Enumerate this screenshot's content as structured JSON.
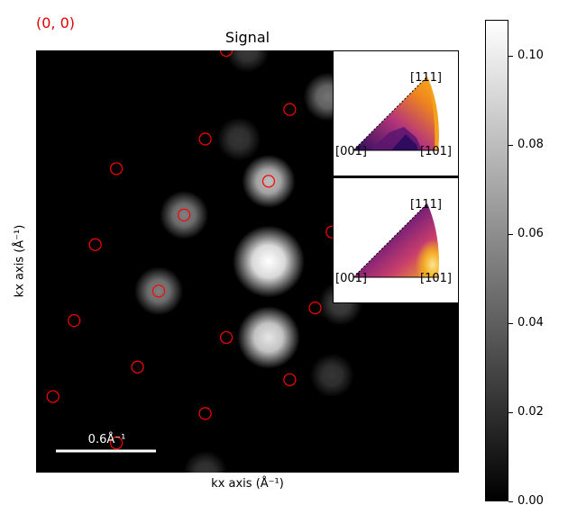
{
  "header": {
    "coordinate": "(0, 0)"
  },
  "chart_data": {
    "type": "heatmap",
    "title": "Signal",
    "xlabel": "kx axis (Å⁻¹)",
    "ylabel": "kx axis (Å⁻¹)",
    "scalebar_label": "0.6Å⁻¹",
    "colormap": "gray",
    "colorbar": {
      "range": [
        0.0,
        0.108
      ],
      "ticks": [
        "0.00",
        "0.02",
        "0.04",
        "0.06",
        "0.08",
        "0.10"
      ],
      "tick_values": [
        0.0,
        0.02,
        0.04,
        0.06,
        0.08,
        0.1
      ]
    },
    "diffraction_spots": [
      {
        "col": 0.55,
        "row": 0.5,
        "intensity": 1.0,
        "size": 1.0
      },
      {
        "col": 0.55,
        "row": 0.68,
        "intensity": 0.75,
        "size": 0.8
      },
      {
        "col": 0.55,
        "row": 0.31,
        "intensity": 0.6,
        "size": 0.6
      },
      {
        "col": 0.69,
        "row": 0.11,
        "intensity": 0.3,
        "size": 0.5
      },
      {
        "col": 0.35,
        "row": 0.39,
        "intensity": 0.35,
        "size": 0.5
      },
      {
        "col": 0.29,
        "row": 0.57,
        "intensity": 0.35,
        "size": 0.5
      },
      {
        "col": 0.5,
        "row": 0.0,
        "intensity": 0.08,
        "size": 0.4
      },
      {
        "col": 0.48,
        "row": 0.21,
        "intensity": 0.06,
        "size": 0.4
      },
      {
        "col": 0.7,
        "row": 0.77,
        "intensity": 0.06,
        "size": 0.4
      },
      {
        "col": 0.72,
        "row": 0.6,
        "intensity": 0.1,
        "size": 0.4
      },
      {
        "col": 0.76,
        "row": 0.43,
        "intensity": 0.1,
        "size": 0.4
      },
      {
        "col": 0.4,
        "row": 1.0,
        "intensity": 0.06,
        "size": 0.4
      }
    ],
    "markers": {
      "color": "#ff0000",
      "points": [
        {
          "col": 0.45,
          "row": 0.0
        },
        {
          "col": 0.6,
          "row": 0.14
        },
        {
          "col": 0.4,
          "row": 0.21
        },
        {
          "col": 0.19,
          "row": 0.28
        },
        {
          "col": 0.55,
          "row": 0.31
        },
        {
          "col": 0.35,
          "row": 0.39
        },
        {
          "col": 0.14,
          "row": 0.46
        },
        {
          "col": 0.7,
          "row": 0.43
        },
        {
          "col": 0.29,
          "row": 0.57
        },
        {
          "col": 0.66,
          "row": 0.61
        },
        {
          "col": 0.09,
          "row": 0.64
        },
        {
          "col": 0.45,
          "row": 0.68
        },
        {
          "col": 0.24,
          "row": 0.75
        },
        {
          "col": 0.6,
          "row": 0.78
        },
        {
          "col": 0.04,
          "row": 0.82
        },
        {
          "col": 0.4,
          "row": 0.86
        },
        {
          "col": 0.19,
          "row": 0.93
        }
      ]
    },
    "ipf_insets": [
      {
        "labels": {
          "top": "[111]",
          "left": "[001]",
          "right": "[101]"
        },
        "colormap": "inferno"
      },
      {
        "labels": {
          "top": "[111]",
          "left": "[001]",
          "right": "[101]"
        },
        "colormap": "inferno"
      }
    ]
  }
}
